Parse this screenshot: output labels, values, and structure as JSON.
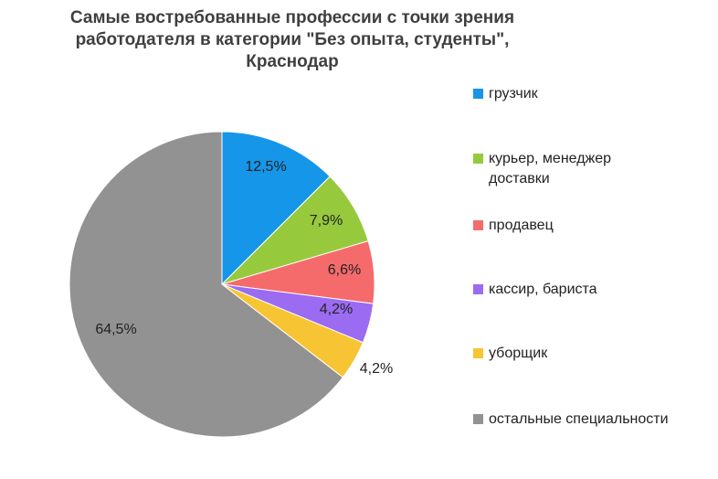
{
  "title_lines": [
    "Самые востребованные профессии с точки зрения",
    "работодателя в категории \"Без опыта, студенты\",",
    "Краснодар"
  ],
  "chart_data": {
    "type": "pie",
    "title": "Самые востребованные профессии с точки зрения работодателя в категории \"Без опыта, студенты\", Краснодар",
    "legend_position": "right",
    "slices": [
      {
        "label": "грузчик",
        "value": 12.5,
        "display": "12,5%",
        "color": "#1596E8"
      },
      {
        "label": "курьер, менеджер доставки",
        "value": 7.9,
        "display": "7,9%",
        "color": "#97C93D"
      },
      {
        "label": "продавец",
        "value": 6.6,
        "display": "6,6%",
        "color": "#F56B6B"
      },
      {
        "label": "кассир, бариста",
        "value": 4.2,
        "display": "4,2%",
        "color": "#9B6BF2"
      },
      {
        "label": "уборщик",
        "value": 4.2,
        "display": "4,2%",
        "color": "#F7C533"
      },
      {
        "label": "остальные специальности",
        "value": 64.5,
        "display": "64,5%",
        "color": "#929292"
      }
    ]
  }
}
